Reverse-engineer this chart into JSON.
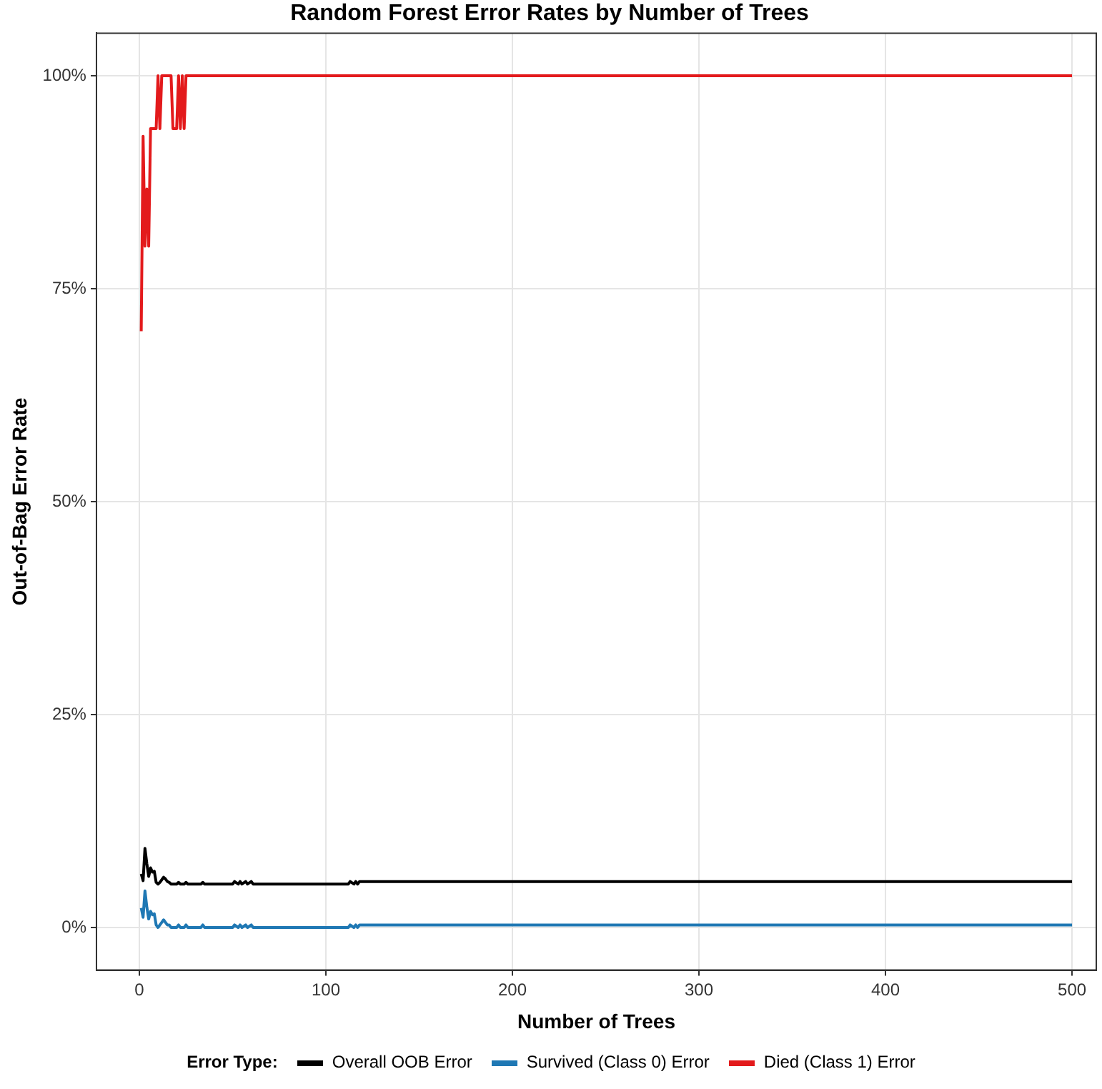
{
  "chart_data": {
    "type": "line",
    "title": "Random Forest Error Rates by Number of Trees",
    "xlabel": "Number of Trees",
    "ylabel": "Out-of-Bag Error Rate",
    "legend_title": "Error Type:",
    "xlim": [
      -23,
      513
    ],
    "xticks": [
      0,
      100,
      200,
      300,
      400,
      500
    ],
    "ylim": [
      -5,
      105
    ],
    "yticks": [
      {
        "value": 0,
        "label": "0%"
      },
      {
        "value": 25,
        "label": "25%"
      },
      {
        "value": 50,
        "label": "50%"
      },
      {
        "value": 75,
        "label": "75%"
      },
      {
        "value": 100,
        "label": "100%"
      }
    ],
    "grid": true,
    "legend": "bottom",
    "marker": "none",
    "line_style": "solid",
    "series": [
      {
        "name": "Overall OOB Error",
        "color": "#000000",
        "x": [
          1,
          2,
          3,
          4,
          5,
          6,
          7,
          8,
          9,
          10,
          11,
          12,
          13,
          14,
          15,
          16,
          17,
          20,
          21,
          22,
          24,
          25,
          26,
          33,
          34,
          35,
          50,
          51,
          53,
          54,
          55,
          57,
          58,
          60,
          61,
          112,
          113,
          115,
          116,
          117,
          118,
          500
        ],
        "values": [
          6.3,
          5.5,
          9.3,
          7.5,
          6.0,
          7.0,
          6.5,
          6.6,
          5.3,
          5.1,
          5.3,
          5.6,
          5.9,
          5.7,
          5.4,
          5.3,
          5.1,
          5.1,
          5.3,
          5.1,
          5.1,
          5.3,
          5.1,
          5.1,
          5.3,
          5.1,
          5.1,
          5.4,
          5.1,
          5.4,
          5.1,
          5.4,
          5.1,
          5.4,
          5.1,
          5.1,
          5.4,
          5.1,
          5.4,
          5.1,
          5.4,
          5.4
        ]
      },
      {
        "name": "Survived (Class 0) Error",
        "color": "#1f78b4",
        "x": [
          1,
          2,
          3,
          4,
          5,
          6,
          7,
          8,
          9,
          10,
          11,
          12,
          13,
          14,
          15,
          16,
          17,
          20,
          21,
          22,
          24,
          25,
          26,
          33,
          34,
          35,
          50,
          51,
          53,
          54,
          55,
          57,
          58,
          60,
          61,
          112,
          113,
          115,
          116,
          117,
          118,
          500
        ],
        "values": [
          2.3,
          1.2,
          4.3,
          2.4,
          1.0,
          1.9,
          1.5,
          1.6,
          0.3,
          0.0,
          0.3,
          0.6,
          0.9,
          0.6,
          0.3,
          0.3,
          0.0,
          0.0,
          0.3,
          0.0,
          0.0,
          0.3,
          0.0,
          0.0,
          0.3,
          0.0,
          0.0,
          0.3,
          0.0,
          0.3,
          0.0,
          0.3,
          0.0,
          0.3,
          0.0,
          0.0,
          0.3,
          0.0,
          0.3,
          0.0,
          0.3,
          0.3
        ]
      },
      {
        "name": "Died (Class 1) Error",
        "color": "#e31a1c",
        "x": [
          1,
          2,
          3,
          4,
          5,
          6,
          7,
          8,
          9,
          10,
          11,
          12,
          17,
          18,
          20,
          21,
          22,
          23,
          24,
          25,
          500
        ],
        "values": [
          70,
          92.9,
          80,
          86.7,
          80,
          93.8,
          93.8,
          93.8,
          93.8,
          100,
          93.8,
          100,
          100,
          93.8,
          93.8,
          100,
          93.8,
          100,
          93.8,
          100,
          100
        ]
      }
    ]
  }
}
